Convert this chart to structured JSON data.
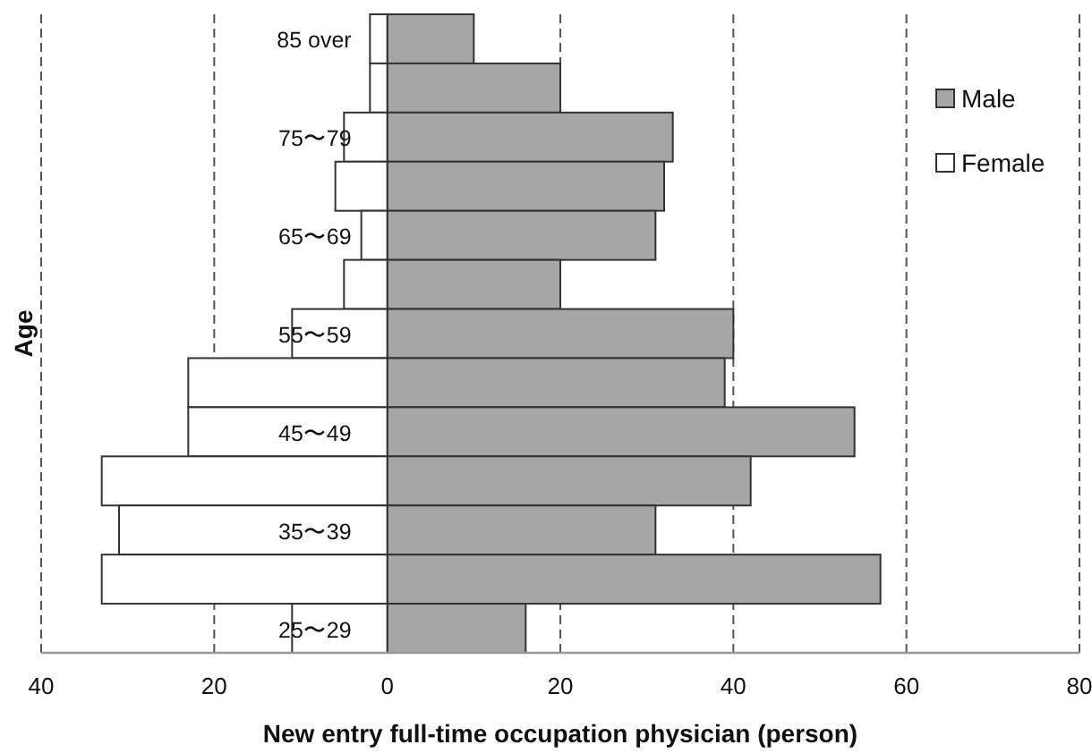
{
  "chart_data": {
    "type": "bar",
    "orientation": "horizontal",
    "xlabel": "New entry full-time occupation physician (person)",
    "ylabel": "Age",
    "categories": [
      "85 over",
      null,
      "75〜79",
      null,
      "65〜69",
      null,
      "55〜59",
      null,
      "45〜49",
      null,
      "35〜39",
      null,
      "25〜29"
    ],
    "series": [
      {
        "name": "Male",
        "color": "#a6a6a6",
        "values": [
          10,
          20,
          33,
          32,
          31,
          20,
          40,
          39,
          54,
          42,
          31,
          57,
          16
        ]
      },
      {
        "name": "Female",
        "color": "#ffffff",
        "values": [
          -2,
          -2,
          -5,
          -6,
          -3,
          -5,
          -11,
          -23,
          -23,
          -33,
          -31,
          -33,
          -11
        ]
      }
    ],
    "xlim": [
      -40,
      80
    ],
    "xticks": [
      {
        "value": -40,
        "label": "40"
      },
      {
        "value": -20,
        "label": "20"
      },
      0,
      20,
      40,
      60,
      80
    ],
    "grid": "x",
    "legend": "top right",
    "stacked": true
  }
}
